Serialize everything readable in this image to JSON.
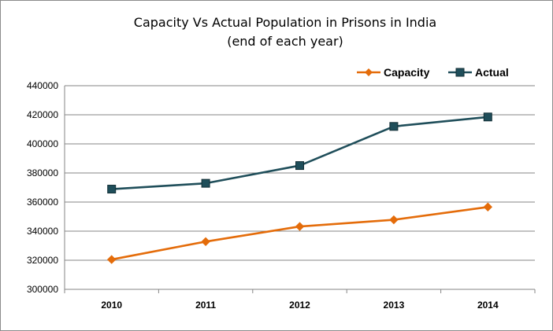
{
  "chart_data": {
    "type": "line",
    "title": "Capacity Vs Actual Population in Prisons in India",
    "subtitle": "(end of each year)",
    "xlabel": "",
    "ylabel": "",
    "categories": [
      "2010",
      "2011",
      "2012",
      "2013",
      "2014"
    ],
    "ylim": [
      300000,
      440000
    ],
    "yticks": [
      "300000",
      "320000",
      "340000",
      "360000",
      "380000",
      "400000",
      "420000",
      "440000"
    ],
    "grid": true,
    "legend_position": "top-right",
    "series": [
      {
        "name": "Capacity",
        "color": "#e46c0a",
        "marker": "diamond",
        "values": [
          320500,
          332800,
          343200,
          347800,
          356600
        ]
      },
      {
        "name": "Actual",
        "color": "#1f4e5a",
        "marker": "square",
        "values": [
          368900,
          372900,
          385100,
          412000,
          418500
        ]
      }
    ]
  }
}
